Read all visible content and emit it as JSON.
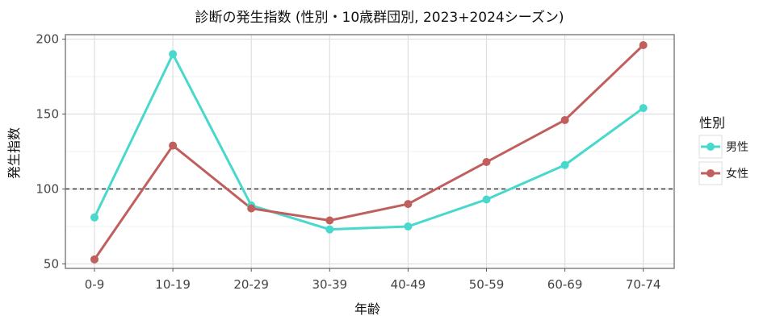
{
  "chart_data": {
    "type": "line",
    "title": "診断の発生指数 (性別・10歳群団別, 2023+2024シーズン)",
    "xlabel": "年齢",
    "ylabel": "発生指数",
    "categories": [
      "0-9",
      "10-19",
      "20-29",
      "30-39",
      "40-49",
      "50-59",
      "60-69",
      "70-74"
    ],
    "ylim": [
      47,
      203
    ],
    "yticks": [
      50,
      100,
      150,
      200
    ],
    "reference_line": 100,
    "grid": true,
    "legend": {
      "title": "性別",
      "placement": "right"
    },
    "series": [
      {
        "name": "男性",
        "color": "#48D8CC",
        "values": [
          81,
          190,
          89,
          73,
          75,
          93,
          116,
          154
        ]
      },
      {
        "name": "女性",
        "color": "#C0605E",
        "values": [
          53,
          129,
          87,
          79,
          90,
          118,
          146,
          196
        ]
      }
    ]
  }
}
